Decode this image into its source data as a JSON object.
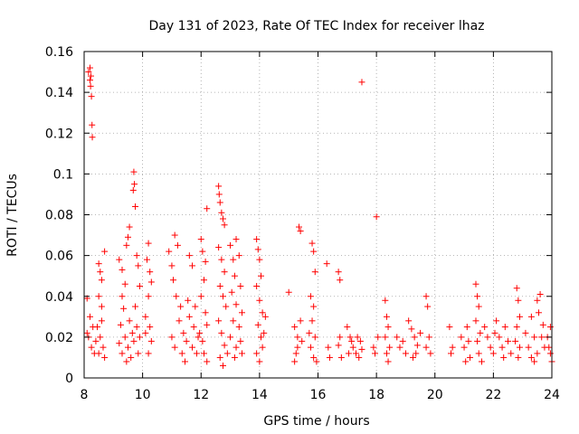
{
  "chart_data": {
    "type": "scatter",
    "title": "Day 131 of 2023, Rate Of TEC Index for receiver lhaz",
    "xlabel": "GPS time / hours",
    "ylabel": "ROTI / TECUs",
    "xlim": [
      8,
      24
    ],
    "ylim": [
      0,
      0.16
    ],
    "xticks": [
      "8",
      "10",
      "12",
      "14",
      "16",
      "18",
      "20",
      "22",
      "24"
    ],
    "yticks": [
      "0",
      "0.02",
      "0.04",
      "0.06",
      "0.08",
      "0.1",
      "0.12",
      "0.14",
      "0.16"
    ],
    "grid": true,
    "marker": "+",
    "colors": {
      "series": "#ff0000",
      "grid": "#a0a0a0",
      "axis": "#000000"
    },
    "series": [
      {
        "name": "ROTI",
        "points": [
          [
            8.15,
            0.15
          ],
          [
            8.2,
            0.146
          ],
          [
            8.22,
            0.143
          ],
          [
            8.25,
            0.138
          ],
          [
            8.27,
            0.124
          ],
          [
            8.28,
            0.118
          ],
          [
            8.2,
            0.152
          ],
          [
            8.23,
            0.148
          ],
          [
            8.1,
            0.039
          ],
          [
            8.2,
            0.03
          ],
          [
            8.3,
            0.025
          ],
          [
            8.15,
            0.02
          ],
          [
            8.25,
            0.015
          ],
          [
            8.35,
            0.012
          ],
          [
            8.4,
            0.018
          ],
          [
            8.1,
            0.022
          ],
          [
            8.5,
            0.056
          ],
          [
            8.55,
            0.052
          ],
          [
            8.6,
            0.048
          ],
          [
            8.5,
            0.04
          ],
          [
            8.6,
            0.035
          ],
          [
            8.7,
            0.062
          ],
          [
            8.45,
            0.025
          ],
          [
            8.55,
            0.02
          ],
          [
            8.65,
            0.015
          ],
          [
            8.7,
            0.01
          ],
          [
            8.6,
            0.028
          ],
          [
            8.5,
            0.012
          ],
          [
            9.2,
            0.058
          ],
          [
            9.3,
            0.053
          ],
          [
            9.4,
            0.046
          ],
          [
            9.5,
            0.069
          ],
          [
            9.55,
            0.074
          ],
          [
            9.45,
            0.065
          ],
          [
            9.3,
            0.04
          ],
          [
            9.35,
            0.034
          ],
          [
            9.25,
            0.026
          ],
          [
            9.4,
            0.02
          ],
          [
            9.5,
            0.015
          ],
          [
            9.6,
            0.01
          ],
          [
            9.2,
            0.017
          ],
          [
            9.3,
            0.012
          ],
          [
            9.45,
            0.008
          ],
          [
            9.55,
            0.028
          ],
          [
            9.65,
            0.022
          ],
          [
            9.7,
            0.101
          ],
          [
            9.72,
            0.095
          ],
          [
            9.68,
            0.092
          ],
          [
            9.75,
            0.084
          ],
          [
            9.8,
            0.06
          ],
          [
            9.85,
            0.055
          ],
          [
            9.9,
            0.045
          ],
          [
            9.75,
            0.035
          ],
          [
            9.8,
            0.025
          ],
          [
            9.7,
            0.018
          ],
          [
            9.85,
            0.012
          ],
          [
            9.9,
            0.02
          ],
          [
            10.2,
            0.066
          ],
          [
            10.15,
            0.058
          ],
          [
            10.25,
            0.052
          ],
          [
            10.3,
            0.047
          ],
          [
            10.2,
            0.04
          ],
          [
            10.1,
            0.03
          ],
          [
            10.25,
            0.025
          ],
          [
            10.3,
            0.018
          ],
          [
            10.2,
            0.012
          ],
          [
            10.1,
            0.022
          ],
          [
            10.9,
            0.062
          ],
          [
            11.0,
            0.055
          ],
          [
            11.05,
            0.048
          ],
          [
            11.1,
            0.07
          ],
          [
            11.2,
            0.065
          ],
          [
            11.15,
            0.04
          ],
          [
            11.3,
            0.035
          ],
          [
            11.25,
            0.028
          ],
          [
            11.4,
            0.022
          ],
          [
            11.5,
            0.018
          ],
          [
            11.35,
            0.012
          ],
          [
            11.45,
            0.008
          ],
          [
            11.0,
            0.02
          ],
          [
            11.1,
            0.015
          ],
          [
            11.55,
            0.038
          ],
          [
            11.6,
            0.03
          ],
          [
            11.6,
            0.06
          ],
          [
            11.7,
            0.055
          ],
          [
            11.8,
            0.035
          ],
          [
            11.75,
            0.025
          ],
          [
            11.7,
            0.015
          ],
          [
            11.85,
            0.012
          ],
          [
            11.9,
            0.02
          ],
          [
            12.0,
            0.068
          ],
          [
            12.05,
            0.062
          ],
          [
            12.15,
            0.057
          ],
          [
            12.2,
            0.083
          ],
          [
            12.1,
            0.048
          ],
          [
            12.0,
            0.04
          ],
          [
            12.15,
            0.032
          ],
          [
            12.2,
            0.026
          ],
          [
            12.05,
            0.018
          ],
          [
            12.1,
            0.012
          ],
          [
            12.2,
            0.008
          ],
          [
            11.95,
            0.022
          ],
          [
            12.6,
            0.094
          ],
          [
            12.62,
            0.09
          ],
          [
            12.65,
            0.086
          ],
          [
            12.7,
            0.081
          ],
          [
            12.75,
            0.078
          ],
          [
            12.8,
            0.075
          ],
          [
            12.6,
            0.064
          ],
          [
            12.7,
            0.058
          ],
          [
            12.8,
            0.052
          ],
          [
            12.65,
            0.045
          ],
          [
            12.75,
            0.04
          ],
          [
            12.85,
            0.035
          ],
          [
            12.6,
            0.028
          ],
          [
            12.7,
            0.022
          ],
          [
            12.8,
            0.016
          ],
          [
            12.9,
            0.012
          ],
          [
            12.65,
            0.01
          ],
          [
            12.75,
            0.006
          ],
          [
            13.0,
            0.065
          ],
          [
            13.1,
            0.058
          ],
          [
            13.2,
            0.068
          ],
          [
            13.15,
            0.05
          ],
          [
            13.05,
            0.042
          ],
          [
            13.2,
            0.036
          ],
          [
            13.1,
            0.028
          ],
          [
            13.0,
            0.02
          ],
          [
            13.2,
            0.015
          ],
          [
            13.15,
            0.01
          ],
          [
            13.3,
            0.06
          ],
          [
            13.35,
            0.045
          ],
          [
            13.4,
            0.032
          ],
          [
            13.3,
            0.025
          ],
          [
            13.35,
            0.018
          ],
          [
            13.4,
            0.012
          ],
          [
            13.9,
            0.068
          ],
          [
            13.95,
            0.063
          ],
          [
            14.0,
            0.058
          ],
          [
            14.05,
            0.05
          ],
          [
            13.9,
            0.045
          ],
          [
            14.0,
            0.038
          ],
          [
            14.1,
            0.032
          ],
          [
            13.95,
            0.026
          ],
          [
            14.05,
            0.02
          ],
          [
            14.1,
            0.015
          ],
          [
            13.9,
            0.012
          ],
          [
            14.0,
            0.008
          ],
          [
            14.2,
            0.03
          ],
          [
            14.15,
            0.022
          ],
          [
            15.0,
            0.042
          ],
          [
            15.2,
            0.025
          ],
          [
            15.3,
            0.02
          ],
          [
            15.35,
            0.074
          ],
          [
            15.4,
            0.072
          ],
          [
            15.3,
            0.015
          ],
          [
            15.4,
            0.028
          ],
          [
            15.25,
            0.012
          ],
          [
            15.2,
            0.008
          ],
          [
            15.45,
            0.018
          ],
          [
            15.8,
            0.066
          ],
          [
            15.85,
            0.062
          ],
          [
            15.9,
            0.052
          ],
          [
            15.75,
            0.04
          ],
          [
            15.85,
            0.035
          ],
          [
            15.8,
            0.028
          ],
          [
            15.9,
            0.02
          ],
          [
            15.75,
            0.015
          ],
          [
            15.85,
            0.01
          ],
          [
            15.95,
            0.008
          ],
          [
            15.7,
            0.022
          ],
          [
            16.3,
            0.056
          ],
          [
            16.4,
            0.01
          ],
          [
            16.35,
            0.015
          ],
          [
            16.7,
            0.052
          ],
          [
            16.75,
            0.048
          ],
          [
            16.8,
            0.01
          ],
          [
            16.7,
            0.016
          ],
          [
            16.75,
            0.02
          ],
          [
            17.0,
            0.025
          ],
          [
            17.1,
            0.02
          ],
          [
            17.2,
            0.015
          ],
          [
            17.05,
            0.012
          ],
          [
            17.15,
            0.018
          ],
          [
            17.3,
            0.012
          ],
          [
            17.35,
            0.02
          ],
          [
            17.5,
            0.145
          ],
          [
            17.4,
            0.01
          ],
          [
            17.5,
            0.014
          ],
          [
            17.45,
            0.018
          ],
          [
            18.0,
            0.079
          ],
          [
            17.9,
            0.015
          ],
          [
            17.95,
            0.012
          ],
          [
            18.05,
            0.02
          ],
          [
            18.3,
            0.038
          ],
          [
            18.35,
            0.03
          ],
          [
            18.4,
            0.025
          ],
          [
            18.3,
            0.02
          ],
          [
            18.45,
            0.015
          ],
          [
            18.35,
            0.012
          ],
          [
            18.4,
            0.008
          ],
          [
            18.7,
            0.02
          ],
          [
            18.8,
            0.015
          ],
          [
            18.9,
            0.018
          ],
          [
            19.0,
            0.012
          ],
          [
            19.1,
            0.028
          ],
          [
            19.2,
            0.024
          ],
          [
            19.3,
            0.02
          ],
          [
            19.4,
            0.016
          ],
          [
            19.5,
            0.022
          ],
          [
            19.35,
            0.012
          ],
          [
            19.25,
            0.01
          ],
          [
            19.7,
            0.04
          ],
          [
            19.75,
            0.035
          ],
          [
            19.8,
            0.02
          ],
          [
            19.7,
            0.015
          ],
          [
            19.85,
            0.012
          ],
          [
            20.5,
            0.025
          ],
          [
            20.6,
            0.015
          ],
          [
            20.55,
            0.012
          ],
          [
            20.9,
            0.02
          ],
          [
            21.0,
            0.015
          ],
          [
            21.1,
            0.025
          ],
          [
            21.2,
            0.01
          ],
          [
            21.05,
            0.008
          ],
          [
            21.15,
            0.018
          ],
          [
            21.4,
            0.046
          ],
          [
            21.45,
            0.04
          ],
          [
            21.5,
            0.035
          ],
          [
            21.4,
            0.028
          ],
          [
            21.55,
            0.022
          ],
          [
            21.45,
            0.018
          ],
          [
            21.5,
            0.012
          ],
          [
            21.6,
            0.008
          ],
          [
            21.7,
            0.025
          ],
          [
            21.8,
            0.02
          ],
          [
            21.9,
            0.015
          ],
          [
            22.0,
            0.012
          ],
          [
            22.05,
            0.022
          ],
          [
            22.1,
            0.028
          ],
          [
            22.2,
            0.02
          ],
          [
            22.3,
            0.015
          ],
          [
            22.4,
            0.025
          ],
          [
            22.35,
            0.01
          ],
          [
            22.5,
            0.018
          ],
          [
            22.6,
            0.012
          ],
          [
            22.8,
            0.044
          ],
          [
            22.85,
            0.038
          ],
          [
            22.9,
            0.03
          ],
          [
            22.8,
            0.025
          ],
          [
            22.75,
            0.018
          ],
          [
            22.9,
            0.015
          ],
          [
            22.85,
            0.01
          ],
          [
            23.1,
            0.022
          ],
          [
            23.2,
            0.015
          ],
          [
            23.3,
            0.03
          ],
          [
            23.4,
            0.02
          ],
          [
            23.5,
            0.038
          ],
          [
            23.55,
            0.032
          ],
          [
            23.6,
            0.041
          ],
          [
            23.7,
            0.026
          ],
          [
            23.65,
            0.02
          ],
          [
            23.75,
            0.015
          ],
          [
            23.5,
            0.012
          ],
          [
            23.4,
            0.008
          ],
          [
            23.3,
            0.01
          ],
          [
            23.85,
            0.02
          ],
          [
            23.9,
            0.015
          ],
          [
            23.95,
            0.025
          ],
          [
            24.0,
            0.008
          ],
          [
            23.95,
            0.012
          ]
        ]
      }
    ]
  }
}
